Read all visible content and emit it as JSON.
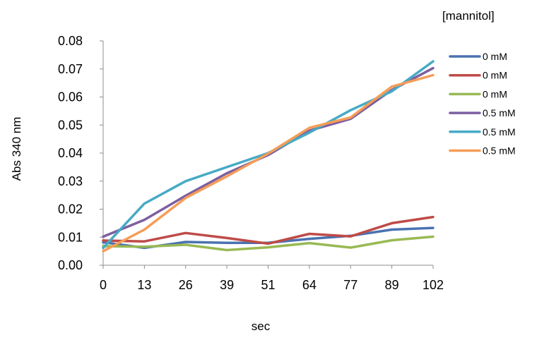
{
  "chart_data": {
    "type": "line",
    "title": "",
    "xlabel": "sec",
    "ylabel": "Abs 340 nm",
    "x": [
      "0",
      "13",
      "26",
      "39",
      "51",
      "64",
      "77",
      "89",
      "102"
    ],
    "ylim": [
      0,
      0.08
    ],
    "yticks": [
      "0.00",
      "0.01",
      "0.02",
      "0.03",
      "0.04",
      "0.05",
      "0.06",
      "0.07",
      "0.08"
    ],
    "grid": false,
    "legend_title": "[mannitol]",
    "legend_position": "right",
    "series": [
      {
        "name": "0 mM",
        "color": "#4a72b0",
        "values": [
          0.0082,
          0.0062,
          0.0083,
          0.008,
          0.008,
          0.0094,
          0.0105,
          0.0127,
          0.0133
        ]
      },
      {
        "name": "0 mM",
        "color": "#be4b48",
        "values": [
          0.0088,
          0.0085,
          0.0115,
          0.0097,
          0.0077,
          0.0112,
          0.0103,
          0.015,
          0.0172
        ]
      },
      {
        "name": "0 mM",
        "color": "#98b954",
        "values": [
          0.0068,
          0.0066,
          0.0073,
          0.0054,
          0.0064,
          0.0079,
          0.0063,
          0.0089,
          0.0102
        ]
      },
      {
        "name": "0.5 mM",
        "color": "#7d5fa0",
        "values": [
          0.0102,
          0.0162,
          0.0248,
          0.0328,
          0.0393,
          0.048,
          0.0522,
          0.0625,
          0.0703
        ]
      },
      {
        "name": "0.5 mM",
        "color": "#46aac5",
        "values": [
          0.0062,
          0.022,
          0.03,
          0.035,
          0.04,
          0.0473,
          0.0553,
          0.062,
          0.0727
        ]
      },
      {
        "name": "0.5 mM",
        "color": "#f59d56",
        "values": [
          0.005,
          0.0127,
          0.024,
          0.0317,
          0.0398,
          0.049,
          0.0527,
          0.0637,
          0.0678
        ]
      }
    ]
  }
}
